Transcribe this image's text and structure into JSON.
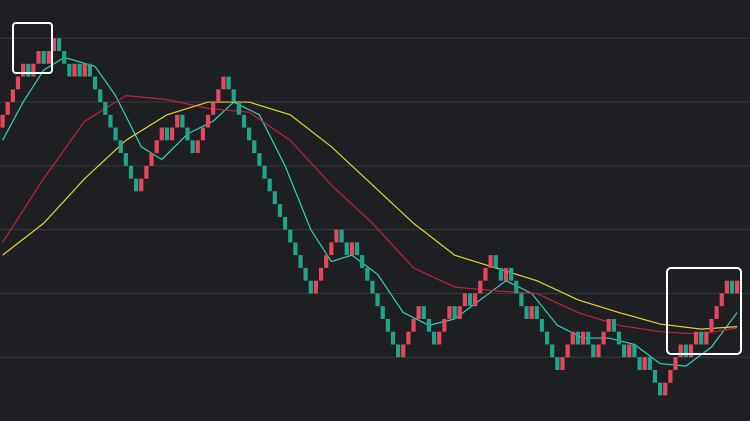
{
  "chart_data": {
    "type": "renko",
    "background": "#1e1f23",
    "grid": true,
    "grid_color": "#3a3b41",
    "xlim": [
      -0.5,
      145.5
    ],
    "ylim": [
      0,
      33
    ],
    "yticks": [
      5,
      10,
      15,
      20,
      25,
      30
    ],
    "bricks": {
      "up_color": "#e5475f",
      "down_color": "#1fa58a",
      "open": [
        23,
        24,
        25,
        26,
        27,
        28,
        27,
        28,
        29,
        28,
        29,
        30,
        29,
        28,
        27,
        28,
        27,
        28,
        27,
        26,
        25,
        24,
        23,
        22,
        21,
        20,
        19,
        18,
        19,
        20,
        21,
        22,
        23,
        22,
        23,
        24,
        23,
        22,
        21,
        22,
        23,
        24,
        25,
        26,
        27,
        26,
        25,
        24,
        23,
        22,
        21,
        20,
        19,
        18,
        17,
        16,
        15,
        14,
        13,
        12,
        11,
        10,
        11,
        12,
        13,
        14,
        15,
        14,
        13,
        14,
        13,
        12,
        11,
        10,
        9,
        8,
        7,
        6,
        5,
        6,
        7,
        8,
        9,
        8,
        7,
        6,
        7,
        8,
        9,
        8,
        9,
        10,
        9,
        10,
        11,
        12,
        13,
        12,
        11,
        12,
        11,
        10,
        9,
        8,
        9,
        8,
        7,
        6,
        5,
        4,
        5,
        6,
        7,
        6,
        7,
        6,
        5,
        6,
        7,
        8,
        7,
        6,
        5,
        6,
        5,
        4,
        5,
        4,
        3,
        2,
        3,
        4,
        5,
        6,
        5,
        6,
        7,
        6,
        7,
        8,
        9,
        10,
        11,
        10
      ],
      "close": [
        24,
        25,
        26,
        27,
        28,
        27,
        28,
        29,
        28,
        29,
        30,
        29,
        28,
        27,
        28,
        27,
        28,
        27,
        26,
        25,
        24,
        23,
        22,
        21,
        20,
        19,
        18,
        19,
        20,
        21,
        22,
        23,
        22,
        23,
        24,
        23,
        22,
        21,
        22,
        23,
        24,
        25,
        26,
        27,
        26,
        25,
        24,
        23,
        22,
        21,
        20,
        19,
        18,
        17,
        16,
        15,
        14,
        13,
        12,
        11,
        10,
        11,
        12,
        13,
        14,
        15,
        14,
        13,
        14,
        13,
        12,
        11,
        10,
        9,
        8,
        7,
        6,
        5,
        6,
        7,
        8,
        9,
        8,
        7,
        6,
        7,
        8,
        9,
        8,
        9,
        10,
        9,
        10,
        11,
        12,
        13,
        12,
        11,
        12,
        11,
        10,
        9,
        8,
        9,
        8,
        7,
        6,
        5,
        4,
        5,
        6,
        7,
        6,
        7,
        6,
        5,
        6,
        7,
        8,
        7,
        6,
        5,
        6,
        5,
        4,
        5,
        4,
        3,
        2,
        3,
        4,
        5,
        6,
        5,
        6,
        7,
        6,
        7,
        8,
        9,
        10,
        11,
        10,
        11
      ]
    },
    "lines": [
      {
        "color": "#2fd3b6",
        "x": [
          0,
          4,
          8,
          12,
          18,
          22,
          27,
          31,
          36,
          41,
          45,
          50,
          55,
          60,
          64,
          68,
          73,
          78,
          83,
          88,
          93,
          98,
          103,
          108,
          113,
          118,
          123,
          128,
          133,
          138,
          143
        ],
        "values": [
          22,
          25,
          27.5,
          28.5,
          27.8,
          25.5,
          21.5,
          20.5,
          22.5,
          23.5,
          25,
          24,
          20,
          15,
          12.5,
          13,
          11.5,
          8.5,
          7.5,
          8,
          9.5,
          11,
          10,
          7.5,
          6.5,
          6.5,
          6,
          4.5,
          4.3,
          5.8,
          8.5
        ]
      },
      {
        "color": "#c2203f",
        "x": [
          0,
          8,
          16,
          24,
          32,
          40,
          48,
          56,
          64,
          72,
          80,
          88,
          96,
          104,
          112,
          120,
          128,
          136,
          143
        ],
        "values": [
          14,
          19,
          23.5,
          25.5,
          25.2,
          24.5,
          24.2,
          22,
          18.5,
          15.5,
          12,
          10.5,
          10.2,
          10,
          8.5,
          7.5,
          7,
          6.8,
          7.3
        ]
      },
      {
        "color": "#e4d22e",
        "x": [
          0,
          8,
          16,
          24,
          32,
          40,
          48,
          56,
          64,
          72,
          80,
          88,
          96,
          104,
          112,
          120,
          128,
          136,
          143
        ],
        "values": [
          13,
          15.5,
          19,
          22,
          24,
          25,
          25,
          24,
          21.5,
          18.5,
          15.5,
          13,
          12,
          11,
          9.5,
          8.5,
          7.6,
          7.2,
          7.4
        ]
      }
    ]
  }
}
